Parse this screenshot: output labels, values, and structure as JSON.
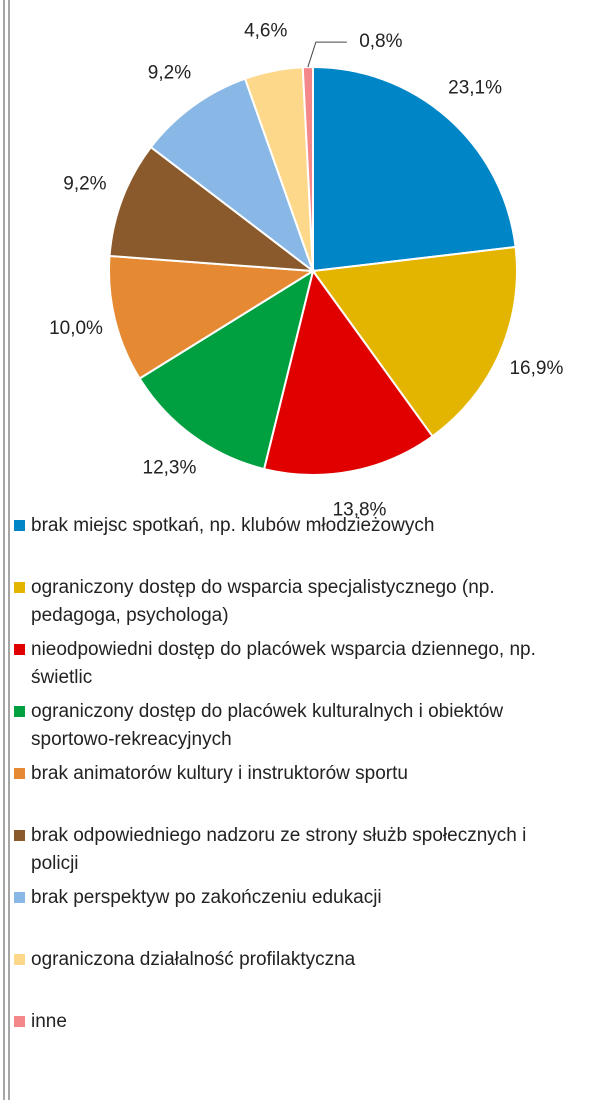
{
  "chart_data": {
    "type": "pie",
    "categories": [
      "brak miejsc spotkań, np. klubów młodzieżowych",
      "ograniczony dostęp do wsparcia specjalistycznego (np. pedagoga, psychologa)",
      "nieodpowiedni dostęp do placówek wsparcia dziennego, np. świetlic",
      "ograniczony dostęp do placówek kulturalnych i obiektów sportowo-rekreacyjnych",
      "brak animatorów kultury i instruktorów sportu",
      "brak odpowiedniego nadzoru ze strony służb społecznych i policji",
      "brak perspektyw po zakończeniu edukacji",
      "ograniczona działalność profilaktyczna",
      "inne"
    ],
    "values": [
      23.1,
      16.9,
      13.8,
      12.3,
      10.0,
      9.2,
      9.2,
      4.6,
      0.8
    ],
    "value_labels": [
      "23,1%",
      "16,9%",
      "13,8%",
      "12,3%",
      "10,0%",
      "9,2%",
      "9,2%",
      "4,6%",
      "0,8%"
    ],
    "colors": [
      "#0085c7",
      "#e4b500",
      "#e00000",
      "#00a040",
      "#e58a33",
      "#8a5a2c",
      "#8ab8e6",
      "#fdd78a",
      "#f4878a"
    ],
    "legend": "bottom"
  }
}
